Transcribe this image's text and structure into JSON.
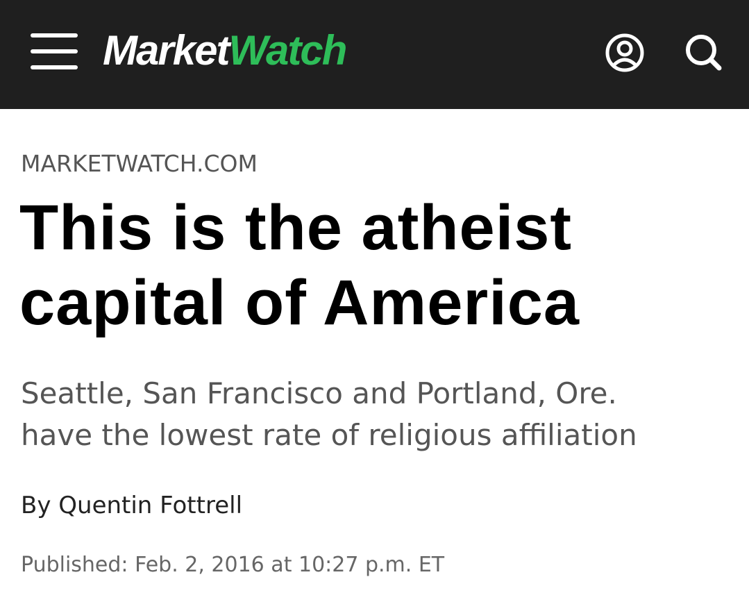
{
  "header": {
    "logo": {
      "first": "Market",
      "second": "Watch"
    }
  },
  "article": {
    "source": "MARKETWATCH.COM",
    "headline": [
      "This is the atheist",
      "capital of America"
    ],
    "subtitle": [
      "Seattle, San Francisco and Portland, Ore.",
      "have the lowest rate of religious affiliation"
    ],
    "byline": "By Quentin Fottrell",
    "published": "Published: Feb. 2, 2016 at 10:27 p.m. ET"
  }
}
